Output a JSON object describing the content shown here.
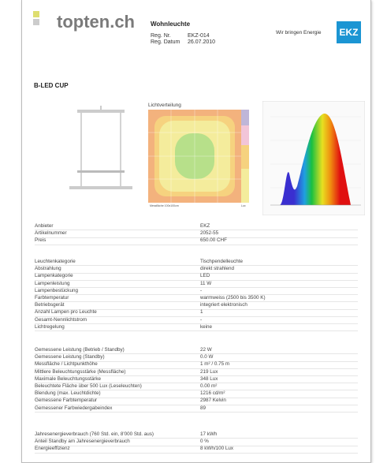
{
  "header": {
    "logo": "topten.ch",
    "category": "Wohnleuchte",
    "reg_nr_label": "Reg. Nr.",
    "reg_nr": "EKZ-014",
    "reg_date_label": "Reg. Datum",
    "reg_date": "26.07.2010",
    "slogan": "Wir bringen Energie",
    "brand": "EKZ"
  },
  "product": {
    "title": "B-LED CUP"
  },
  "light_distribution": {
    "title": "Lichtverteilung",
    "footer_left": "Messfläche 100x100cm",
    "footer_right": "Lux"
  },
  "table": {
    "groups": [
      [
        [
          "Anbieter",
          "EKZ"
        ],
        [
          "Artikelnummer",
          "2052-55"
        ],
        [
          "Preis",
          "650.00 CHF"
        ]
      ],
      [
        [
          "Leuchtenkategorie",
          "Tischpendelleuchte"
        ],
        [
          "Abstrahlung",
          "direkt strahlend"
        ],
        [
          "Lampenkategorie",
          "LED"
        ],
        [
          "Lampenleistung",
          "11 W"
        ],
        [
          "Lampenbestückung",
          "-"
        ],
        [
          "Farbtemperatur",
          "warmweiss (2500 bis 3500 K)"
        ],
        [
          "Betriebsgerät",
          "integriert elektronisch"
        ],
        [
          "Anzahl Lampen pro Leuchte",
          "1"
        ],
        [
          "Gesamt-Nennlichtstrom",
          "-"
        ],
        [
          "Lichtregelung",
          "keine"
        ]
      ],
      [
        [
          "Gemessene Leistung (Betrieb / Standby)",
          "22 W"
        ],
        [
          "Gemessene Leistung (Standby)",
          "0.0 W"
        ],
        [
          "Messfläche / Lichtpunkthöhe",
          "1 m² / 0.75 m"
        ],
        [
          "Mittlere Beleuchtungsstärke (Messfläche)",
          "219 Lux"
        ],
        [
          "Maximale Beleuchtungsstärke",
          "348 Lux"
        ],
        [
          "Beleuchtete Fläche über 500 Lux (Leseleuchten)",
          "0.00 m²"
        ],
        [
          "Blendung (max. Leuchtdichte)",
          "1216 cd/m²"
        ],
        [
          "Gemessene Farbtemperatur",
          "2987 Kelvin"
        ],
        [
          "Gemessener Farbwiedergabeindex",
          "89"
        ]
      ],
      [
        [
          "Jahresenergieverbrauch  (760 Std. ein, 8'000 Std. aus)",
          "17 kWh"
        ],
        [
          "Anteil Standby am Jahresenergieverbrauch",
          "0 %"
        ],
        [
          "Energieeffizienz",
          "8 kWh/100 Lux"
        ]
      ]
    ]
  }
}
